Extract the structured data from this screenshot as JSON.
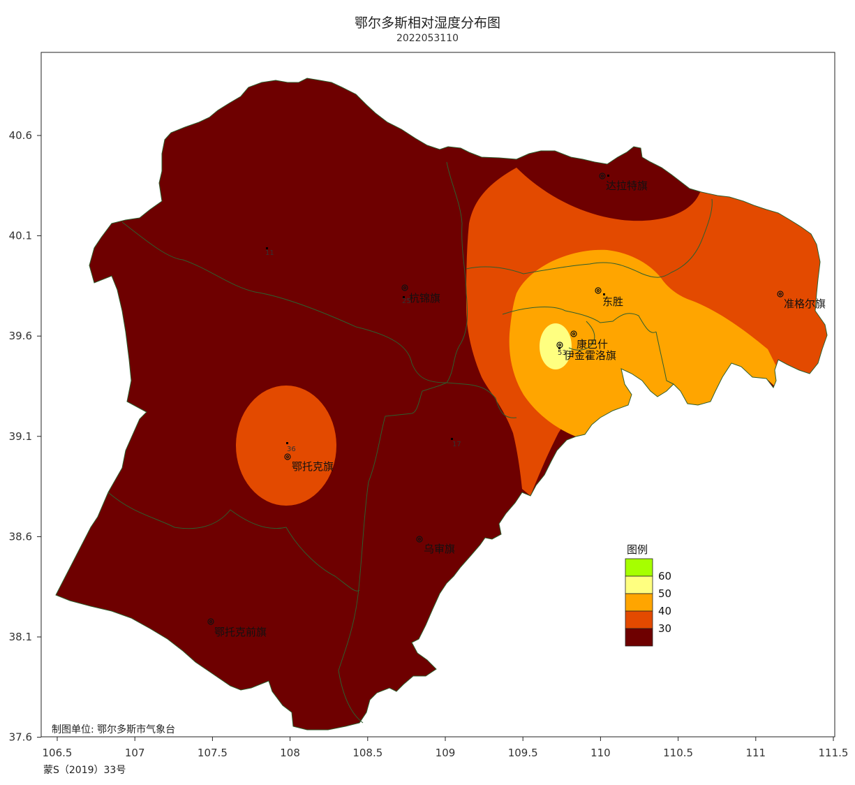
{
  "title": "鄂尔多斯相对湿度分布图",
  "subtitle": "2022053110",
  "x_ticks": [
    "106.5",
    "107",
    "107.5",
    "108",
    "108.5",
    "109",
    "109.5",
    "110",
    "110.5",
    "111",
    "111.5"
  ],
  "y_ticks": [
    "40.6",
    "40.1",
    "39.6",
    "39.1",
    "38.6",
    "38.1",
    "37.6"
  ],
  "cities": {
    "dalate": "达拉特旗",
    "hangjin": "杭锦旗",
    "dongsheng": "东胜",
    "zhungeer": "准格尔旗",
    "kangbashi": "康巴什",
    "yijinhuoluo": "伊金霍洛旗",
    "etuoke": "鄂托克旗",
    "wushen": "乌审旗",
    "etuokeqian": "鄂托克前旗"
  },
  "station_values": {
    "v11": "11",
    "v25": "25",
    "v36": "36",
    "v17": "17",
    "v53": "53"
  },
  "legend": {
    "title": "图例",
    "items": [
      {
        "label": "60",
        "color": "#a6ff00"
      },
      {
        "label": "50",
        "color": "#ffff80"
      },
      {
        "label": "40",
        "color": "#ffa500"
      },
      {
        "label": "30",
        "color": "#e34a00"
      },
      {
        "label": "",
        "color": "#6e0000"
      }
    ]
  },
  "producer": "制图单位: 鄂尔多斯市气象台",
  "map_approval": "蒙S（2019）33号",
  "colors": {
    "dark": "#6e0000",
    "orange_red": "#e34a00",
    "orange": "#ffa500",
    "yellow": "#ffff80",
    "boundary": "#2e5e2e"
  }
}
